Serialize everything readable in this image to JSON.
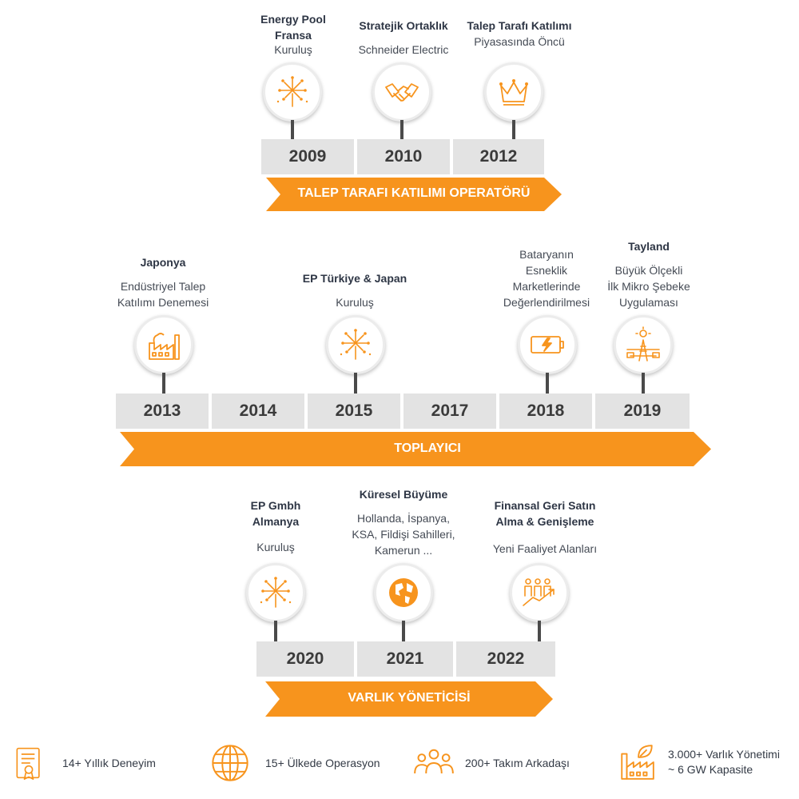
{
  "colors": {
    "accent": "#f7941d",
    "arrow": "#f7941d",
    "year_box": "#e3e3e3"
  },
  "row1": {
    "events": [
      {
        "title": "Energy Pool\nFransa",
        "subtitle": "Kuruluş",
        "icon": "fireworks-icon"
      },
      {
        "title": "Stratejik Ortaklık",
        "subtitle": "Schneider Electric",
        "icon": "handshake-icon"
      },
      {
        "title": "Talep Tarafı Katılımı",
        "subtitle": "Piyasasında Öncü",
        "icon": "crown-icon"
      }
    ],
    "years": [
      "2009",
      "2010",
      "2012"
    ],
    "arrow_label": "TALEP TARAFI KATILIMI OPERATÖRÜ"
  },
  "row2": {
    "events": [
      {
        "title": "Japonya",
        "subtitle": "Endüstriyel Talep\nKatılımı Denemesi",
        "icon": "factory-icon"
      },
      {
        "title": "EP Türkiye & Japan",
        "subtitle": "Kuruluş",
        "icon": "fireworks-icon"
      },
      {
        "title": "",
        "subtitle": "Bataryanın\nEsneklik\nMarketlerinde\nDeğerlendirilmesi",
        "icon": "battery-icon"
      },
      {
        "title": "Tayland",
        "subtitle": "Büyük Ölçekli\nİlk Mikro Şebeke\nUygulaması",
        "icon": "microgrid-icon"
      }
    ],
    "years": [
      "2013",
      "2014",
      "2015",
      "2017",
      "2018",
      "2019"
    ],
    "arrow_label": "TOPLAYICI"
  },
  "row3": {
    "events": [
      {
        "title": "EP Gmbh\nAlmanya",
        "subtitle": "Kuruluş",
        "icon": "fireworks-icon"
      },
      {
        "title": "Küresel Büyüme",
        "subtitle": "Hollanda, İspanya,\nKSA, Fildişi Sahilleri,\nKamerun ...",
        "icon": "globe-icon"
      },
      {
        "title": "Finansal Geri Satın\nAlma & Genişleme",
        "subtitle": "Yeni Faaliyet Alanları",
        "icon": "growth-icon"
      }
    ],
    "years": [
      "2020",
      "2021",
      "2022"
    ],
    "arrow_label": "VARLIK YÖNETİCİSİ"
  },
  "stats": [
    {
      "text": "14+ Yıllık Deneyim",
      "icon": "certificate-icon"
    },
    {
      "text": "15+ Ülkede Operasyon",
      "icon": "globe-icon"
    },
    {
      "text": "200+ Takım Arkadaşı",
      "icon": "team-icon"
    },
    {
      "text": "3.000+ Varlık Yönetimi\n~ 6 GW Kapasite",
      "icon": "green-factory-icon"
    }
  ]
}
